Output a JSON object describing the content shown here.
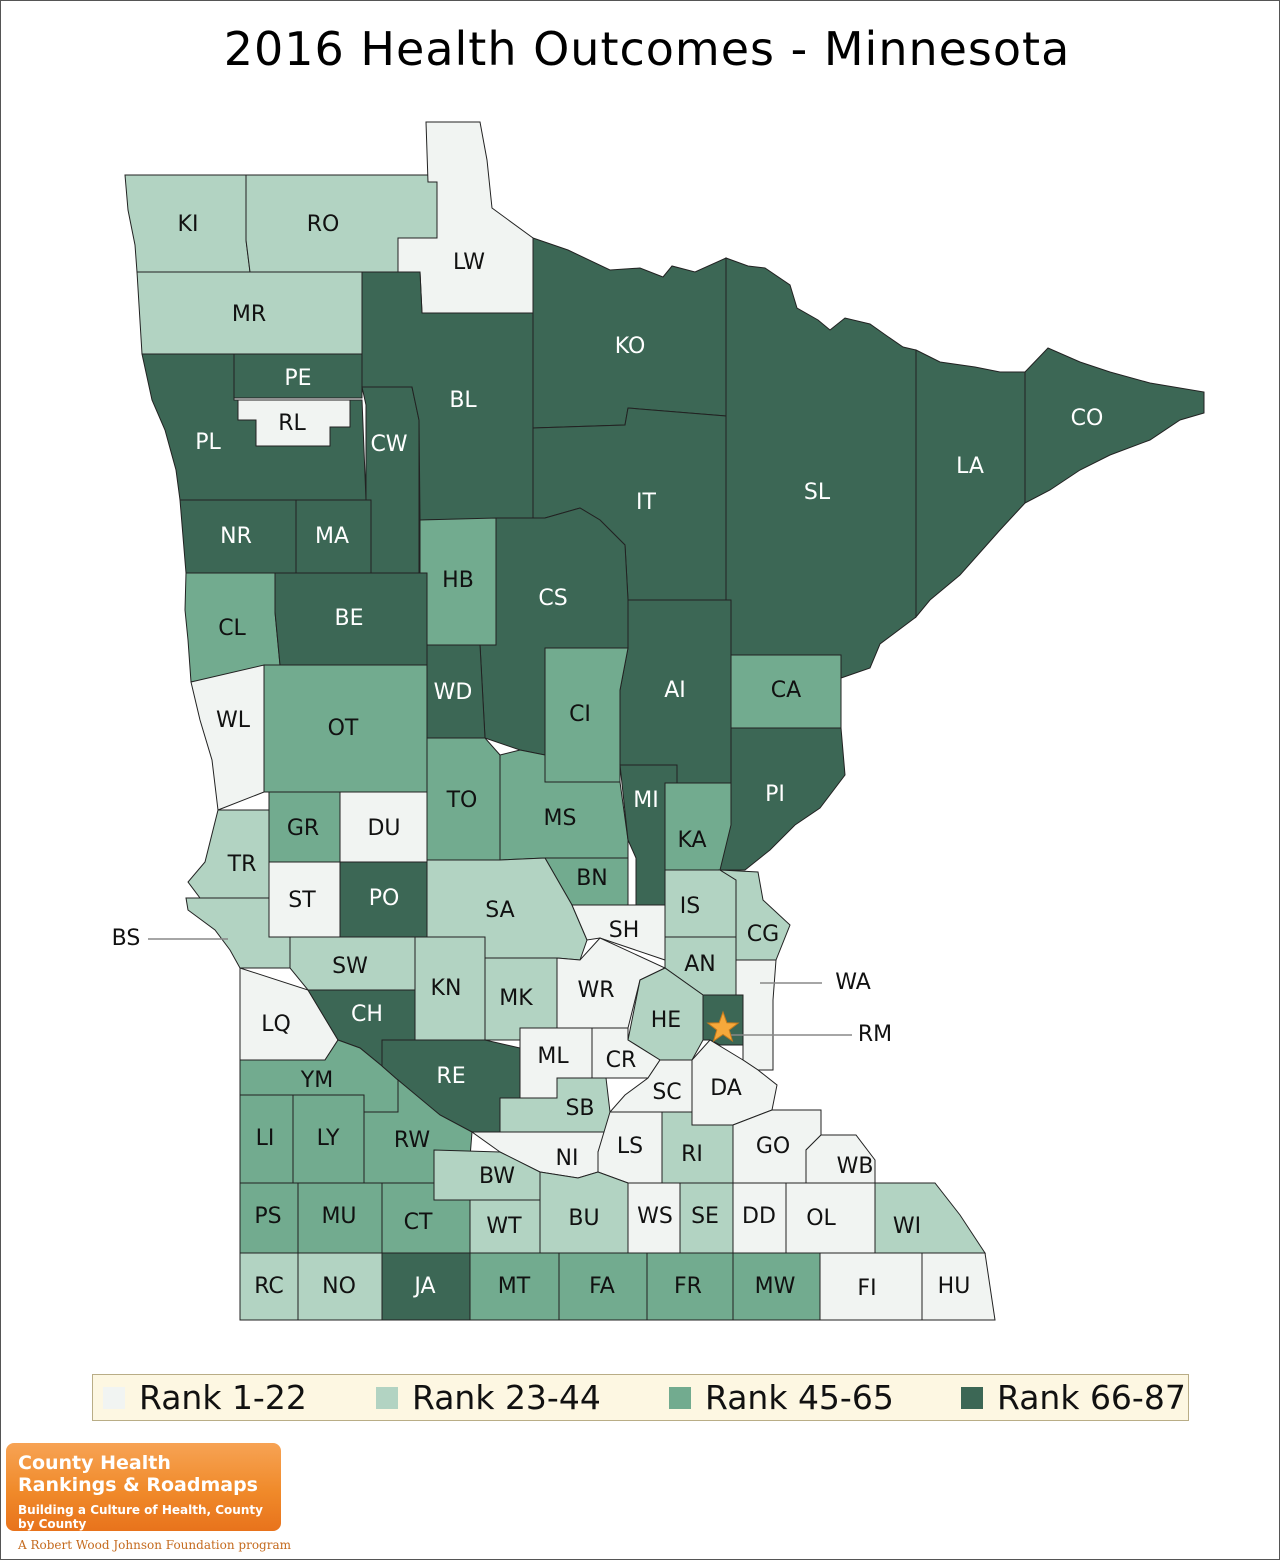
{
  "title": "2016 Health Outcomes - Minnesota",
  "colors": {
    "rank_1_22": "#f1f4f2",
    "rank_23_44": "#b2d3c2",
    "rank_45_65": "#72ab8f",
    "rank_66_87": "#3c6755",
    "star": "#f6a93b"
  },
  "legend": [
    {
      "label": "Rank 1-22",
      "color": "#f1f4f2"
    },
    {
      "label": "Rank 23-44",
      "color": "#b2d3c2"
    },
    {
      "label": "Rank 45-65",
      "color": "#72ab8f"
    },
    {
      "label": "Rank 66-87",
      "color": "#3c6755"
    }
  ],
  "counties": [
    {
      "code": "KI",
      "rank_group": "23-44"
    },
    {
      "code": "RO",
      "rank_group": "23-44"
    },
    {
      "code": "LW",
      "rank_group": "1-22"
    },
    {
      "code": "MR",
      "rank_group": "23-44"
    },
    {
      "code": "PE",
      "rank_group": "66-87"
    },
    {
      "code": "RL",
      "rank_group": "1-22"
    },
    {
      "code": "PL",
      "rank_group": "66-87"
    },
    {
      "code": "CW",
      "rank_group": "66-87"
    },
    {
      "code": "BL",
      "rank_group": "66-87"
    },
    {
      "code": "KO",
      "rank_group": "66-87"
    },
    {
      "code": "SL",
      "rank_group": "66-87"
    },
    {
      "code": "LA",
      "rank_group": "66-87"
    },
    {
      "code": "CO",
      "rank_group": "66-87"
    },
    {
      "code": "IT",
      "rank_group": "66-87"
    },
    {
      "code": "NR",
      "rank_group": "66-87"
    },
    {
      "code": "MA",
      "rank_group": "66-87"
    },
    {
      "code": "HB",
      "rank_group": "45-65"
    },
    {
      "code": "CS",
      "rank_group": "66-87"
    },
    {
      "code": "CL",
      "rank_group": "45-65"
    },
    {
      "code": "BE",
      "rank_group": "66-87"
    },
    {
      "code": "WD",
      "rank_group": "66-87"
    },
    {
      "code": "AI",
      "rank_group": "66-87"
    },
    {
      "code": "CA",
      "rank_group": "45-65"
    },
    {
      "code": "CI",
      "rank_group": "45-65"
    },
    {
      "code": "WL",
      "rank_group": "1-22"
    },
    {
      "code": "OT",
      "rank_group": "45-65"
    },
    {
      "code": "PI",
      "rank_group": "66-87"
    },
    {
      "code": "TO",
      "rank_group": "45-65"
    },
    {
      "code": "MS",
      "rank_group": "45-65"
    },
    {
      "code": "MI",
      "rank_group": "66-87"
    },
    {
      "code": "GR",
      "rank_group": "45-65"
    },
    {
      "code": "DU",
      "rank_group": "1-22"
    },
    {
      "code": "KA",
      "rank_group": "45-65"
    },
    {
      "code": "TR",
      "rank_group": "23-44"
    },
    {
      "code": "BN",
      "rank_group": "45-65"
    },
    {
      "code": "ST",
      "rank_group": "1-22"
    },
    {
      "code": "PO",
      "rank_group": "66-87"
    },
    {
      "code": "SA",
      "rank_group": "23-44"
    },
    {
      "code": "IS",
      "rank_group": "23-44"
    },
    {
      "code": "SH",
      "rank_group": "1-22"
    },
    {
      "code": "CG",
      "rank_group": "23-44"
    },
    {
      "code": "BS",
      "rank_group": "23-44"
    },
    {
      "code": "SW",
      "rank_group": "23-44"
    },
    {
      "code": "AN",
      "rank_group": "23-44"
    },
    {
      "code": "WA",
      "rank_group": "1-22"
    },
    {
      "code": "KN",
      "rank_group": "23-44"
    },
    {
      "code": "MK",
      "rank_group": "23-44"
    },
    {
      "code": "WR",
      "rank_group": "1-22"
    },
    {
      "code": "LQ",
      "rank_group": "1-22"
    },
    {
      "code": "CH",
      "rank_group": "66-87"
    },
    {
      "code": "HE",
      "rank_group": "23-44"
    },
    {
      "code": "RM",
      "rank_group": "66-87"
    },
    {
      "code": "ML",
      "rank_group": "1-22"
    },
    {
      "code": "CR",
      "rank_group": "1-22"
    },
    {
      "code": "YM",
      "rank_group": "45-65"
    },
    {
      "code": "RE",
      "rank_group": "66-87"
    },
    {
      "code": "SC",
      "rank_group": "1-22"
    },
    {
      "code": "DA",
      "rank_group": "1-22"
    },
    {
      "code": "SB",
      "rank_group": "23-44"
    },
    {
      "code": "LI",
      "rank_group": "45-65"
    },
    {
      "code": "LY",
      "rank_group": "45-65"
    },
    {
      "code": "RW",
      "rank_group": "45-65"
    },
    {
      "code": "NI",
      "rank_group": "1-22"
    },
    {
      "code": "LS",
      "rank_group": "1-22"
    },
    {
      "code": "RI",
      "rank_group": "23-44"
    },
    {
      "code": "GO",
      "rank_group": "1-22"
    },
    {
      "code": "WB",
      "rank_group": "1-22"
    },
    {
      "code": "BW",
      "rank_group": "23-44"
    },
    {
      "code": "PS",
      "rank_group": "45-65"
    },
    {
      "code": "MU",
      "rank_group": "45-65"
    },
    {
      "code": "CT",
      "rank_group": "45-65"
    },
    {
      "code": "WT",
      "rank_group": "23-44"
    },
    {
      "code": "BU",
      "rank_group": "23-44"
    },
    {
      "code": "WS",
      "rank_group": "1-22"
    },
    {
      "code": "SE",
      "rank_group": "23-44"
    },
    {
      "code": "DD",
      "rank_group": "1-22"
    },
    {
      "code": "OL",
      "rank_group": "1-22"
    },
    {
      "code": "WI",
      "rank_group": "23-44"
    },
    {
      "code": "RC",
      "rank_group": "23-44"
    },
    {
      "code": "NO",
      "rank_group": "23-44"
    },
    {
      "code": "JA",
      "rank_group": "66-87"
    },
    {
      "code": "MT",
      "rank_group": "45-65"
    },
    {
      "code": "FA",
      "rank_group": "45-65"
    },
    {
      "code": "FR",
      "rank_group": "45-65"
    },
    {
      "code": "MW",
      "rank_group": "45-65"
    },
    {
      "code": "FI",
      "rank_group": "1-22"
    },
    {
      "code": "HU",
      "rank_group": "1-22"
    }
  ],
  "logo": {
    "line1": "County Health",
    "line2": "Rankings & Roadmaps",
    "tagline": "Building a Culture of Health, County by County",
    "footer": "A Robert Wood Johnson Foundation program"
  }
}
